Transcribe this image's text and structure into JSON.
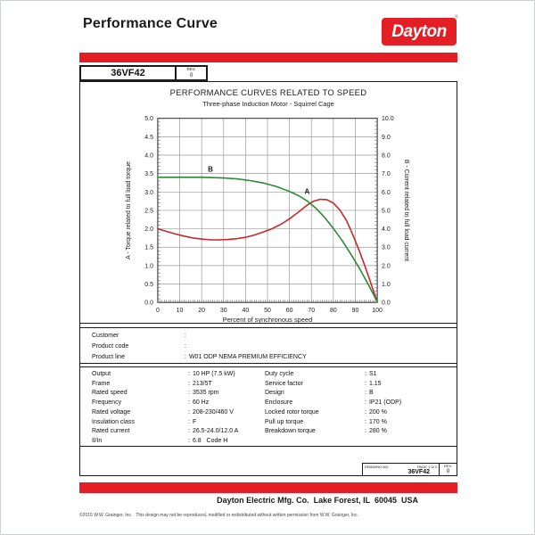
{
  "separator": ":",
  "colors": {
    "accent_red": "#e31e25",
    "curve_red": "#c9252c",
    "curve_green": "#2c8a34"
  },
  "header": {
    "title": "Performance Curve",
    "logo_text": "Dayton",
    "registered_mark": "®"
  },
  "model_box": {
    "model": "36VF42",
    "rev_label": "REV.",
    "rev_value": "0"
  },
  "chart_data": {
    "type": "line",
    "title": "PERFORMANCE CURVES RELATED TO SPEED",
    "subtitle": "Three-phase Induction Motor - Squirrel Cage",
    "xlabel": "Percent of synchronous speed",
    "xlim": [
      0,
      100
    ],
    "x_ticks": [
      0,
      10,
      20,
      30,
      40,
      50,
      60,
      70,
      80,
      90,
      100
    ],
    "x_minor_step": 1,
    "grid": true,
    "left_axis": {
      "label": "A - Torque related to full load torque",
      "color": "#c9252c",
      "min": 0,
      "max": 5,
      "step": 0.5,
      "minor_step": 0.1,
      "decimals": 1
    },
    "right_axis": {
      "label": "B - Current related to full load current",
      "color": "#2c8a34",
      "min": 0,
      "max": 10,
      "step": 1,
      "minor_step": 0.2,
      "decimals": 1
    },
    "series": [
      {
        "name": "A",
        "axis": "left",
        "color": "#c9252c",
        "label_pos": {
          "x": 68,
          "y": 2.95
        },
        "points": [
          [
            0,
            2.0
          ],
          [
            4,
            1.93
          ],
          [
            8,
            1.86
          ],
          [
            12,
            1.8
          ],
          [
            16,
            1.75
          ],
          [
            20,
            1.72
          ],
          [
            24,
            1.7
          ],
          [
            28,
            1.7
          ],
          [
            32,
            1.71
          ],
          [
            36,
            1.73
          ],
          [
            40,
            1.77
          ],
          [
            44,
            1.83
          ],
          [
            48,
            1.91
          ],
          [
            52,
            2.0
          ],
          [
            56,
            2.12
          ],
          [
            60,
            2.27
          ],
          [
            64,
            2.45
          ],
          [
            68,
            2.64
          ],
          [
            71,
            2.75
          ],
          [
            74,
            2.8
          ],
          [
            77,
            2.79
          ],
          [
            80,
            2.7
          ],
          [
            83,
            2.51
          ],
          [
            86,
            2.22
          ],
          [
            88,
            1.96
          ],
          [
            90,
            1.67
          ],
          [
            92,
            1.37
          ],
          [
            94,
            1.05
          ],
          [
            96,
            0.71
          ],
          [
            98,
            0.36
          ],
          [
            100,
            0.02
          ]
        ]
      },
      {
        "name": "B",
        "axis": "right",
        "color": "#2c8a34",
        "label_pos": {
          "x": 24,
          "y": 7.1
        },
        "points": [
          [
            0,
            6.8
          ],
          [
            10,
            6.8
          ],
          [
            20,
            6.8
          ],
          [
            30,
            6.76
          ],
          [
            36,
            6.71
          ],
          [
            42,
            6.62
          ],
          [
            48,
            6.49
          ],
          [
            54,
            6.3
          ],
          [
            60,
            6.03
          ],
          [
            64,
            5.81
          ],
          [
            68,
            5.52
          ],
          [
            72,
            5.12
          ],
          [
            76,
            4.62
          ],
          [
            80,
            4.02
          ],
          [
            84,
            3.36
          ],
          [
            88,
            2.62
          ],
          [
            92,
            1.82
          ],
          [
            96,
            0.95
          ],
          [
            100,
            0.04
          ]
        ]
      }
    ]
  },
  "customer_info": {
    "rows": [
      {
        "label": "Customer",
        "value": ""
      },
      {
        "label": "Product code",
        "value": ""
      },
      {
        "label": "Product line",
        "value": "W01 ODP NEMA PREMIUM EFFICIENCY"
      }
    ]
  },
  "specs": {
    "left_rows": [
      {
        "label": "Output",
        "value": "10 HP (7.5 kW)"
      },
      {
        "label": "Frame",
        "value": "213/5T"
      },
      {
        "label": "Rated speed",
        "value": "3535 rpm"
      },
      {
        "label": "Frequency",
        "value": "60 Hz"
      },
      {
        "label": "Rated voltage",
        "value": "208-230/460 V"
      },
      {
        "label": "Insulation class",
        "value": "F"
      },
      {
        "label": "Rated current",
        "value": "26.5-24.0/12.0 A"
      },
      {
        "label": "Il/In",
        "value": "6.8   Code H"
      }
    ],
    "right_rows": [
      {
        "label": "Duty cycle",
        "value": "S1"
      },
      {
        "label": "Service factor",
        "value": "1.15"
      },
      {
        "label": "Design",
        "value": "B"
      },
      {
        "label": "Enclosure",
        "value": "IP21 (ODP)"
      },
      {
        "label": "Locked rotor torque",
        "value": "200 %"
      },
      {
        "label": "Pull up torque",
        "value": "170 %"
      },
      {
        "label": "Breakdown torque",
        "value": "280 %"
      }
    ]
  },
  "drawing_box": {
    "drawing_no_label": "DRAWING NO.",
    "page_label": "PAGE 1 of 2",
    "drawing_number": "36VF42",
    "rev_label": "REV.",
    "rev_value": "0"
  },
  "footer": {
    "company": "Dayton Electric Mfg. Co.  Lake Forest, IL  60045  USA",
    "copyright": "©2015 W.W. Grainger, Inc.   This design may not be reproduced, modified or redistributed without written permission from W.W. Grainger, Inc."
  }
}
